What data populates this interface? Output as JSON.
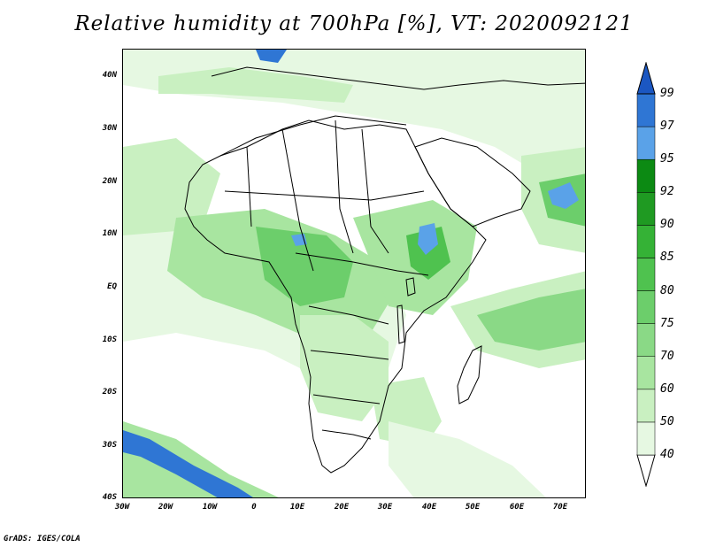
{
  "title": "Relative humidity at 700hPa [%], VT: 2020092121",
  "credit": "GrADS: IGES/COLA",
  "lat_labels": [
    "40N",
    "30N",
    "20N",
    "10N",
    "EQ",
    "10S",
    "20S",
    "30S",
    "40S"
  ],
  "lon_labels": [
    "30W",
    "20W",
    "10W",
    "0",
    "10E",
    "20E",
    "30E",
    "40E",
    "50E",
    "60E",
    "70E"
  ],
  "colorbar": {
    "levels": [
      "40",
      "50",
      "60",
      "70",
      "75",
      "80",
      "85",
      "90",
      "92",
      "95",
      "97",
      "99"
    ],
    "colors": [
      "#ffffff",
      "#e6f8e2",
      "#c9f0c1",
      "#a8e5a0",
      "#8ad986",
      "#6cce6b",
      "#4fc24f",
      "#35b236",
      "#1f9a22",
      "#0c8a13",
      "#5aa2e8",
      "#2f76d4",
      "#1b57c2"
    ]
  }
}
